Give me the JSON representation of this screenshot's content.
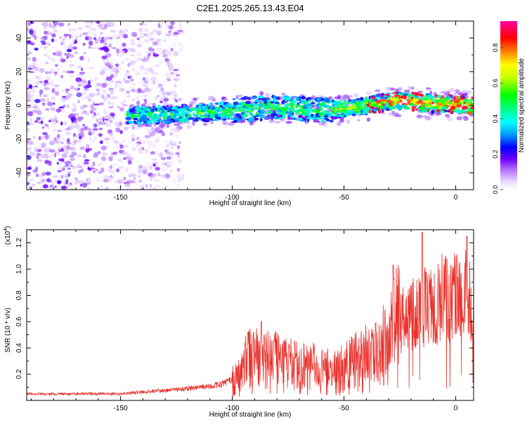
{
  "chart_data": [
    {
      "type": "heatmap",
      "title": "C2E1.2025.265.13.43.E04",
      "xlabel": "Height of straight line (km)",
      "ylabel": "Frequency (Hz)",
      "xlim": [
        -192,
        8
      ],
      "ylim": [
        -50,
        50
      ],
      "xticks": [
        -150,
        -100,
        -50,
        0
      ],
      "yticks": [
        -40,
        -20,
        0,
        20,
        40
      ],
      "colorbar": {
        "label": "Normalized spectral amplitude",
        "range": [
          0,
          0.95
        ],
        "ticks": [
          "0.0",
          "0.2",
          "0.4",
          "0.6",
          "0.8"
        ],
        "tick_values": [
          0,
          0.2,
          0.4,
          0.6,
          0.8
        ]
      },
      "band_center": [
        {
          "x": -145,
          "freq": -6
        },
        {
          "x": -120,
          "freq": -5
        },
        {
          "x": -100,
          "freq": -3
        },
        {
          "x": -80,
          "freq": -1
        },
        {
          "x": -60,
          "freq": -3
        },
        {
          "x": -50,
          "freq": -2
        },
        {
          "x": -40,
          "freq": 0
        },
        {
          "x": -25,
          "freq": 3
        },
        {
          "x": -10,
          "freq": 1
        },
        {
          "x": 8,
          "freq": 0
        }
      ],
      "noise_region_x": [
        -192,
        -122
      ]
    },
    {
      "type": "line",
      "xlabel": "Height of straight line (km)",
      "ylabel": "SNR (10 * v/v)",
      "y_scale_label": "(x10",
      "y_scale_exponent": "4",
      "xlim": [
        -192,
        8
      ],
      "ylim": [
        0,
        1.3
      ],
      "xticks": [
        -150,
        -100,
        -50,
        0
      ],
      "yticks": [
        0.2,
        0.4,
        0.6,
        0.8,
        1.0,
        1.2
      ],
      "ytick_labels": [
        "0.2",
        "0.4",
        "0.6",
        "0.8",
        "1.0",
        "1.2"
      ],
      "series": [
        {
          "name": "SNR",
          "color": "#e8322c",
          "envelope": [
            {
              "x": -192,
              "y": 0.05
            },
            {
              "x": -150,
              "y": 0.05
            },
            {
              "x": -135,
              "y": 0.07
            },
            {
              "x": -120,
              "y": 0.09
            },
            {
              "x": -105,
              "y": 0.12
            },
            {
              "x": -97,
              "y": 0.18
            },
            {
              "x": -93,
              "y": 0.3
            },
            {
              "x": -85,
              "y": 0.3
            },
            {
              "x": -75,
              "y": 0.26
            },
            {
              "x": -62,
              "y": 0.22
            },
            {
              "x": -55,
              "y": 0.2
            },
            {
              "x": -45,
              "y": 0.28
            },
            {
              "x": -35,
              "y": 0.32
            },
            {
              "x": -25,
              "y": 0.6
            },
            {
              "x": -15,
              "y": 0.7
            },
            {
              "x": -5,
              "y": 0.78
            },
            {
              "x": 5,
              "y": 0.8
            },
            {
              "x": 8,
              "y": 0.75
            }
          ],
          "peaks": [
            {
              "x": -93,
              "y": 0.52
            },
            {
              "x": -87,
              "y": 0.6
            },
            {
              "x": -28,
              "y": 1.03
            },
            {
              "x": -15,
              "y": 1.28
            },
            {
              "x": 5,
              "y": 1.25
            }
          ]
        }
      ]
    }
  ]
}
